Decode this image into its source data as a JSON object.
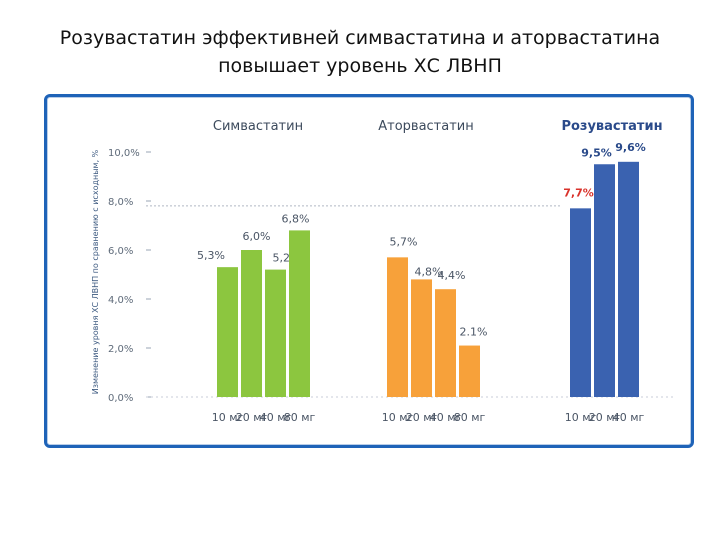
{
  "title": {
    "line1": "Розувастатин эффективней симвастатина и аторвастатина",
    "line2": "повышает уровень ХС ЛВНП"
  },
  "chart_data": {
    "type": "bar",
    "ylabel": "Изменение уровня ХС ЛВНП по сравнению с исходным, %",
    "ylim": [
      0,
      10
    ],
    "yticks": [
      "0,0%",
      "2,0%",
      "4,0%",
      "6,0%",
      "8,0%",
      "10,0%"
    ],
    "grid": false,
    "reference_line": 7.8,
    "groups": [
      {
        "name": "Симвастатин",
        "color": "#8cc63f",
        "label_color": "#4a5565",
        "categories": [
          "10 мг",
          "20 мг",
          "40 мг",
          "80 мг"
        ],
        "values": [
          5.3,
          6.0,
          5.2,
          6.8
        ],
        "labels": [
          "5,3%",
          "6,0%",
          "5,2%",
          "6,8%"
        ]
      },
      {
        "name": "Аторвастатин",
        "color": "#f7a13a",
        "label_color": "#4a5565",
        "categories": [
          "10 мг",
          "20 мг",
          "40 мг",
          "80 мг"
        ],
        "values": [
          5.7,
          4.8,
          4.4,
          2.1
        ],
        "labels": [
          "5,7%",
          "4,8%",
          "4,4%",
          "2.1%"
        ]
      },
      {
        "name": "Розувастатин",
        "color": "#3a62b0",
        "label_color": "#2a4a8a",
        "highlight_color": "#d9322b",
        "categories": [
          "10 мг",
          "20 мг",
          "40 мг"
        ],
        "values": [
          7.7,
          9.5,
          9.6
        ],
        "labels": [
          "7,7%",
          "9,5%",
          "9,6%"
        ]
      }
    ]
  }
}
